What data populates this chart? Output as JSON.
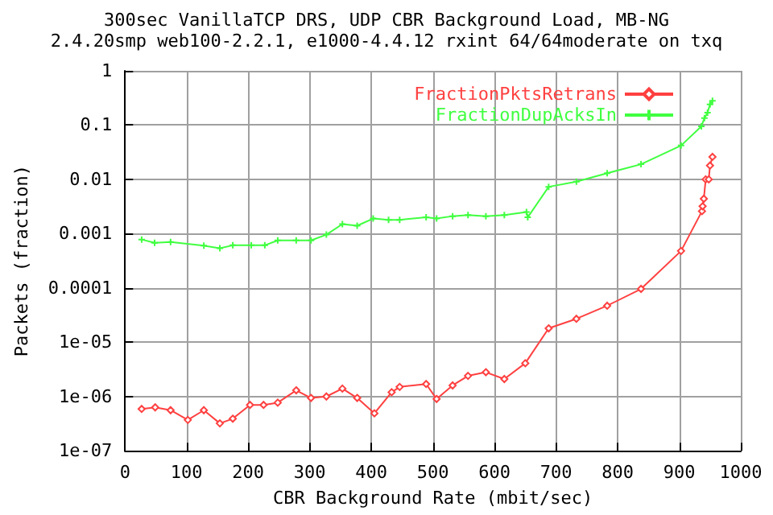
{
  "chart_data": {
    "type": "line",
    "title": "300sec VanillaTCP DRS, UDP CBR Background Load, MB-NG",
    "subtitle": "2.4.20smp web100-2.2.1, e1000-4.4.12 rxint 64/64moderate on txq",
    "xlabel": "CBR Background Rate (mbit/sec)",
    "ylabel": "Packets (fraction)",
    "log": "y",
    "grid": true,
    "legend": "top right",
    "line_style": "solid",
    "xlim": [
      0,
      1000
    ],
    "xticks": [
      0,
      100,
      200,
      300,
      400,
      500,
      600,
      700,
      800,
      900,
      1000
    ],
    "ylim": [
      1e-07,
      1
    ],
    "yticks": [
      {
        "value": 1e-07,
        "label": "1e-07"
      },
      {
        "value": 1e-06,
        "label": "1e-06"
      },
      {
        "value": 1e-05,
        "label": "1e-05"
      },
      0.0001,
      0.001,
      0.01,
      0.1,
      1
    ],
    "series": [
      {
        "name": "FractionPktsRetrans",
        "color": "#ff4040",
        "marker": "diamond",
        "x": [
          27,
          49,
          74,
          102,
          128,
          154,
          175,
          203,
          225,
          248,
          278,
          302,
          327,
          353,
          377,
          405,
          433,
          446,
          489,
          506,
          532,
          557,
          586,
          616,
          650,
          688,
          733,
          783,
          838,
          903,
          937,
          938,
          940,
          943,
          948,
          950,
          954
        ],
        "values": [
          5.9e-07,
          6.3e-07,
          5.6e-07,
          3.7e-07,
          5.6e-07,
          3.2e-07,
          3.9e-07,
          7e-07,
          7e-07,
          7.7e-07,
          1.3e-06,
          9.4e-07,
          1e-06,
          1.4e-06,
          9.4e-07,
          4.9e-07,
          1.2e-06,
          1.5e-06,
          1.7e-06,
          9e-07,
          1.6e-06,
          2.4e-06,
          2.8e-06,
          2.1e-06,
          4.1e-06,
          1.8e-05,
          2.7e-05,
          4.7e-05,
          9.6e-05,
          0.00048,
          0.0026,
          0.0032,
          0.0044,
          0.01,
          0.01,
          0.018,
          0.026
        ]
      },
      {
        "name": "FractionDupAcksIn",
        "color": "#40ff40",
        "marker": "cross",
        "x": [
          27,
          48,
          74,
          128,
          154,
          175,
          205,
          227,
          248,
          278,
          302,
          327,
          353,
          377,
          403,
          428,
          446,
          489,
          506,
          532,
          557,
          586,
          616,
          652,
          654,
          688,
          733,
          783,
          838,
          903,
          936,
          941,
          946,
          950,
          954
        ],
        "values": [
          0.00078,
          0.00068,
          0.0007,
          0.0006,
          0.00054,
          0.00061,
          0.00061,
          0.00061,
          0.00075,
          0.00075,
          0.00075,
          0.00096,
          0.0015,
          0.0014,
          0.0019,
          0.0018,
          0.0018,
          0.002,
          0.0019,
          0.0021,
          0.0022,
          0.0021,
          0.0022,
          0.0025,
          0.002,
          0.0073,
          0.0091,
          0.013,
          0.019,
          0.042,
          0.095,
          0.135,
          0.17,
          0.24,
          0.28
        ]
      }
    ]
  }
}
